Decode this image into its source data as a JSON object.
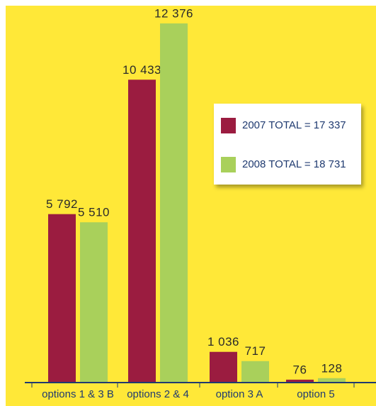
{
  "chart_data": {
    "type": "bar",
    "categories": [
      "options 1 & 3 B",
      "options 2 & 4",
      "option 3 A",
      "option 5"
    ],
    "series": [
      {
        "name": "2007 TOTAL = 17 337",
        "color": "#9b1c40",
        "values": [
          5792,
          10433,
          1036,
          76
        ],
        "value_labels": [
          "5 792",
          "10 433",
          "1 036",
          "76"
        ]
      },
      {
        "name": "2008 TOTAL = 18 731",
        "color": "#a9d05b",
        "values": [
          5510,
          12376,
          717,
          128
        ],
        "value_labels": [
          "5 510",
          "12 376",
          "717",
          "128"
        ]
      }
    ]
  }
}
